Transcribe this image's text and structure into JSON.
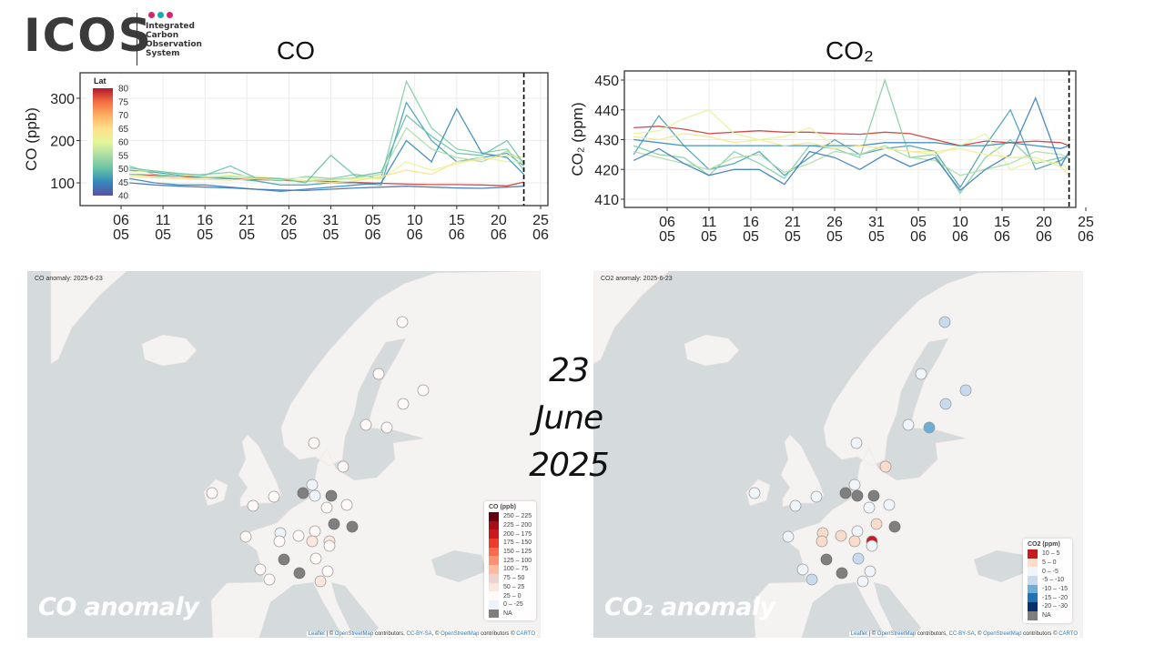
{
  "logo": {
    "wordmark": "ICOS",
    "subtitle_lines": [
      "Integrated",
      "Carbon",
      "Observation",
      "System"
    ],
    "dot_colors": [
      "#d6246e",
      "#1aa9b8",
      "#d6246e"
    ]
  },
  "date_label": {
    "day": "23",
    "month": "June",
    "year": "2025"
  },
  "chart_data": [
    {
      "type": "line",
      "title": "CO",
      "ylabel": "CO (ppb)",
      "ylim": [
        46,
        360
      ],
      "yticks": [
        100,
        200,
        300
      ],
      "xlim": [
        "2025-05-01",
        "2025-06-26"
      ],
      "xticks": [
        {
          "date": "2025-05-06",
          "day": "06",
          "month": "05"
        },
        {
          "date": "2025-05-11",
          "day": "11",
          "month": "05"
        },
        {
          "date": "2025-05-16",
          "day": "16",
          "month": "05"
        },
        {
          "date": "2025-05-21",
          "day": "21",
          "month": "05"
        },
        {
          "date": "2025-05-26",
          "day": "26",
          "month": "05"
        },
        {
          "date": "2025-05-31",
          "day": "31",
          "month": "05"
        },
        {
          "date": "2025-06-05",
          "day": "05",
          "month": "06"
        },
        {
          "date": "2025-06-10",
          "day": "10",
          "month": "06"
        },
        {
          "date": "2025-06-15",
          "day": "15",
          "month": "06"
        },
        {
          "date": "2025-06-20",
          "day": "20",
          "month": "06"
        },
        {
          "date": "2025-06-25",
          "day": "25",
          "month": "06"
        }
      ],
      "grid": true,
      "marker_date": "2025-06-23",
      "colorbar": {
        "title": "Lat",
        "ticks": [
          80,
          75,
          70,
          65,
          60,
          55,
          50,
          45,
          40
        ],
        "range": [
          40,
          80
        ],
        "placement": "top-left"
      },
      "x": [
        "2025-05-07",
        "2025-05-10",
        "2025-05-13",
        "2025-05-16",
        "2025-05-19",
        "2025-05-22",
        "2025-05-25",
        "2025-05-28",
        "2025-05-31",
        "2025-06-03",
        "2025-06-06",
        "2025-06-09",
        "2025-06-12",
        "2025-06-15",
        "2025-06-18",
        "2025-06-21",
        "2025-06-23"
      ],
      "series": [
        {
          "lat": 78,
          "values": [
            120,
            118,
            115,
            113,
            110,
            108,
            106,
            104,
            103,
            101,
            99,
            97,
            96,
            96,
            95,
            93,
            102
          ]
        },
        {
          "lat": 47,
          "values": [
            130,
            125,
            118,
            112,
            110,
            105,
            95,
            95,
            100,
            100,
            95,
            290,
            200,
            150,
            160,
            170,
            140
          ]
        },
        {
          "lat": 52,
          "values": [
            140,
            120,
            115,
            120,
            125,
            110,
            105,
            115,
            110,
            120,
            110,
            340,
            230,
            180,
            170,
            180,
            130
          ]
        },
        {
          "lat": 60,
          "values": [
            125,
            130,
            120,
            115,
            118,
            115,
            110,
            112,
            105,
            110,
            110,
            150,
            130,
            145,
            160,
            150,
            150
          ]
        },
        {
          "lat": 45,
          "values": [
            110,
            100,
            95,
            95,
            90,
            85,
            80,
            85,
            90,
            95,
            100,
            200,
            150,
            275,
            170,
            160,
            120
          ]
        },
        {
          "lat": 55,
          "values": [
            120,
            115,
            110,
            112,
            115,
            110,
            108,
            105,
            108,
            112,
            120,
            230,
            180,
            160,
            150,
            175,
            150
          ]
        },
        {
          "lat": 43,
          "values": [
            100,
            95,
            92,
            90,
            88,
            85,
            83,
            82,
            85,
            88,
            90,
            92,
            90,
            88,
            87,
            90,
            92
          ]
        },
        {
          "lat": 65,
          "values": [
            115,
            112,
            110,
            108,
            106,
            110,
            108,
            105,
            100,
            105,
            115,
            130,
            120,
            150,
            155,
            165,
            160
          ]
        },
        {
          "lat": 50,
          "values": [
            135,
            128,
            122,
            118,
            140,
            112,
            110,
            100,
            165,
            115,
            125,
            260,
            210,
            170,
            165,
            200,
            145
          ]
        }
      ]
    },
    {
      "type": "line",
      "title": "CO₂",
      "ylabel": "CO₂ (ppm)",
      "ylim": [
        407,
        452
      ],
      "yticks": [
        410,
        420,
        430,
        440,
        450
      ],
      "xlim": [
        "2025-05-01",
        "2025-06-26"
      ],
      "xticks": [
        {
          "date": "2025-05-06",
          "day": "06",
          "month": "05"
        },
        {
          "date": "2025-05-11",
          "day": "11",
          "month": "05"
        },
        {
          "date": "2025-05-16",
          "day": "16",
          "month": "05"
        },
        {
          "date": "2025-05-21",
          "day": "21",
          "month": "05"
        },
        {
          "date": "2025-05-26",
          "day": "26",
          "month": "05"
        },
        {
          "date": "2025-05-31",
          "day": "31",
          "month": "05"
        },
        {
          "date": "2025-06-05",
          "day": "05",
          "month": "06"
        },
        {
          "date": "2025-06-10",
          "day": "10",
          "month": "06"
        },
        {
          "date": "2025-06-15",
          "day": "15",
          "month": "06"
        },
        {
          "date": "2025-06-20",
          "day": "20",
          "month": "06"
        },
        {
          "date": "2025-06-25",
          "day": "25",
          "month": "06"
        }
      ],
      "grid": true,
      "marker_date": "2025-06-23",
      "x": [
        "2025-05-02",
        "2025-05-05",
        "2025-05-08",
        "2025-05-11",
        "2025-05-14",
        "2025-05-17",
        "2025-05-20",
        "2025-05-23",
        "2025-05-26",
        "2025-05-29",
        "2025-06-01",
        "2025-06-04",
        "2025-06-07",
        "2025-06-10",
        "2025-06-13",
        "2025-06-16",
        "2025-06-19",
        "2025-06-22",
        "2025-06-23"
      ],
      "series": [
        {
          "lat": 78,
          "values": [
            434,
            434.5,
            433.5,
            432,
            432.5,
            433,
            432.5,
            432.5,
            432,
            431.8,
            432.5,
            432,
            430,
            428,
            429.5,
            429,
            429.5,
            429,
            428
          ]
        },
        {
          "lat": 47,
          "values": [
            425,
            438,
            428,
            420,
            422,
            426,
            418,
            424,
            430,
            425,
            427,
            428,
            426,
            414,
            428,
            440,
            420,
            423,
            425
          ]
        },
        {
          "lat": 52,
          "values": [
            428,
            425,
            424,
            418,
            426,
            422,
            417,
            428,
            427,
            424,
            450,
            424,
            425,
            412,
            424,
            430,
            422,
            424,
            424
          ]
        },
        {
          "lat": 60,
          "values": [
            432,
            433,
            437,
            440,
            432,
            430,
            431,
            434,
            428,
            428,
            427,
            426,
            425,
            428,
            432,
            420,
            423,
            422,
            420
          ]
        },
        {
          "lat": 45,
          "values": [
            430,
            429,
            428,
            428,
            428,
            428,
            428,
            428,
            428,
            428,
            429,
            429,
            429,
            428,
            428,
            429,
            428,
            427,
            428
          ]
        },
        {
          "lat": 55,
          "values": [
            426,
            424,
            422,
            420,
            424,
            425,
            419,
            422,
            426,
            425,
            428,
            424,
            423,
            418,
            420,
            422,
            426,
            425,
            424
          ]
        },
        {
          "lat": 44,
          "values": [
            423,
            427,
            422,
            418,
            420,
            420,
            415,
            426,
            424,
            420,
            425,
            421,
            424,
            413,
            420,
            425,
            444,
            421,
            426
          ]
        },
        {
          "lat": 63,
          "values": [
            431,
            430,
            432,
            431,
            429,
            430,
            428,
            429,
            427,
            428,
            427,
            426,
            426,
            427,
            425,
            424,
            424,
            421,
            418
          ]
        }
      ]
    }
  ],
  "maps": {
    "co": {
      "header": "CO anomaly: 2025-6-23",
      "overlay_label": "CO anomaly",
      "legend_title": "CO (ppb)",
      "legend": [
        {
          "label": "250 – 225",
          "color": "#67000d"
        },
        {
          "label": "225 – 200",
          "color": "#a50f15"
        },
        {
          "label": "200 – 175",
          "color": "#cb181d"
        },
        {
          "label": "175 – 150",
          "color": "#ef3b2c"
        },
        {
          "label": "150 – 125",
          "color": "#fb6a4a"
        },
        {
          "label": "125 – 100",
          "color": "#fc9272"
        },
        {
          "label": "100 – 75",
          "color": "#fcbba1"
        },
        {
          "label": "75 – 50",
          "color": "#ecd3cf"
        },
        {
          "label": "50 – 25",
          "color": "#fde6dc"
        },
        {
          "label": "25 – 0",
          "color": "#fffaf8"
        },
        {
          "label": "0 – -25",
          "color": "#edf3fa"
        },
        {
          "label": "NA",
          "color": "#7f7f7f"
        }
      ],
      "stations": [
        "25 – 0",
        "25 – 0",
        "25 – 0",
        "25 – 0",
        "25 – 0",
        "25 – 0",
        "25 – 0",
        "25 – 0",
        "25 – 0",
        "25 – 0",
        "25 – 0",
        "0 – -25",
        "NA",
        "0 – -25",
        "NA",
        "25 – 0",
        "25 – 0",
        "NA",
        "NA",
        "25 – 0",
        "0 – -25",
        "25 – 0",
        "25 – 0",
        "25 – 0",
        "50 – 25",
        "50 – 25",
        "25 – 0",
        "NA",
        "25 – 0",
        "25 – 0",
        "25 – 0",
        "NA",
        "25 – 0",
        "50 – 25"
      ]
    },
    "co2": {
      "header": "CO2 anomaly: 2025-6-23",
      "overlay_label": "CO₂ anomaly",
      "legend_title": "CO2 (ppm)",
      "legend": [
        {
          "label": "10 – 5",
          "color": "#cb181d"
        },
        {
          "label": "5 – 0",
          "color": "#fbdccb"
        },
        {
          "label": "0 – -5",
          "color": "#eff5fb"
        },
        {
          "label": "-5 – -10",
          "color": "#c6dbef"
        },
        {
          "label": "-10 – -15",
          "color": "#6baed6"
        },
        {
          "label": "-15 – -20",
          "color": "#2171b5"
        },
        {
          "label": "-20 – -30",
          "color": "#08306b"
        },
        {
          "label": "NA",
          "color": "#7f7f7f"
        }
      ],
      "stations": [
        "-5 – -10",
        "0 – -5",
        "-5 – -10",
        "-5 – -10",
        "0 – -5",
        "-10 – -15",
        "0 – -5",
        "5 – 0",
        "0 – -5",
        "0 – -5",
        "0 – -5",
        "0 – -5",
        "NA",
        "NA",
        "NA",
        "0 – -5",
        "0 – -5",
        "5 – 0",
        "NA",
        "0 – -5",
        "5 – 0",
        "5 – 0",
        "5 – 0",
        "0 – -5",
        "5 – 0",
        "10 – 5",
        "0 – -5",
        "NA",
        "-5 – -10",
        "0 – -5",
        "-5 – -10",
        "NA",
        "0 – -5",
        "0 – -5"
      ]
    },
    "attribution": {
      "leaflet": "Leaflet",
      "sep1": " | © ",
      "osm1": "OpenStreetMap",
      "contrib1": " contributors, ",
      "ccbysa": "CC-BY-SA",
      "sep2": ", © ",
      "osm2": "OpenStreetMap",
      "contrib2": " contributors © ",
      "carto": "CARTO"
    }
  }
}
